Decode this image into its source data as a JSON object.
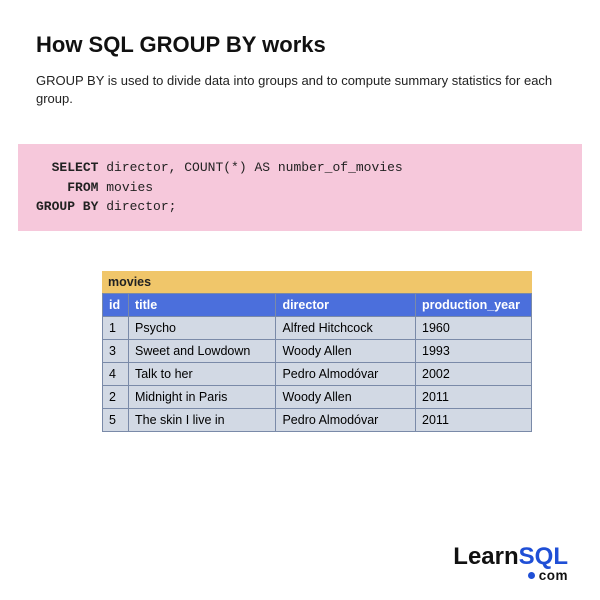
{
  "title": "How SQL GROUP BY works",
  "subtitle": "GROUP BY is used to divide data into groups and to compute summary statistics for each group.",
  "code": {
    "background_color": "#f6c8db",
    "text_color": "#222222",
    "kw_select": "SELECT",
    "rest_select": " director, COUNT(*) AS number_of_movies",
    "kw_from": "FROM",
    "rest_from": " movies",
    "kw_group": "GROUP BY",
    "rest_group": " director;"
  },
  "table": {
    "title": "movies",
    "title_bg": "#f0c66a",
    "title_color": "#222222",
    "header_bg": "#4b6fdc",
    "header_text": "#ffffff",
    "border_color": "#7a8aa8",
    "row_bg": "#d2d9e4",
    "columns": [
      "id",
      "title",
      "director",
      "production_year"
    ],
    "rows": [
      [
        "1",
        "Psycho",
        "Alfred Hitchcock",
        "1960"
      ],
      [
        "3",
        "Sweet and Lowdown",
        "Woody Allen",
        "1993"
      ],
      [
        "4",
        "Talk to her",
        "Pedro Almodóvar",
        "2002"
      ],
      [
        "2",
        "Midnight in Paris",
        "Woody Allen",
        "2011"
      ],
      [
        "5",
        "The skin I live in",
        "Pedro Almodóvar",
        "2011"
      ]
    ],
    "col_widths": [
      "26px",
      "148px",
      "140px",
      "116px"
    ]
  },
  "logo": {
    "learn_text": "Learn",
    "learn_color": "#111111",
    "sql_text": "SQL",
    "sql_color": "#1f4fd6",
    "dot_color": "#1f4fd6",
    "com_text": "com",
    "com_color": "#111111"
  }
}
